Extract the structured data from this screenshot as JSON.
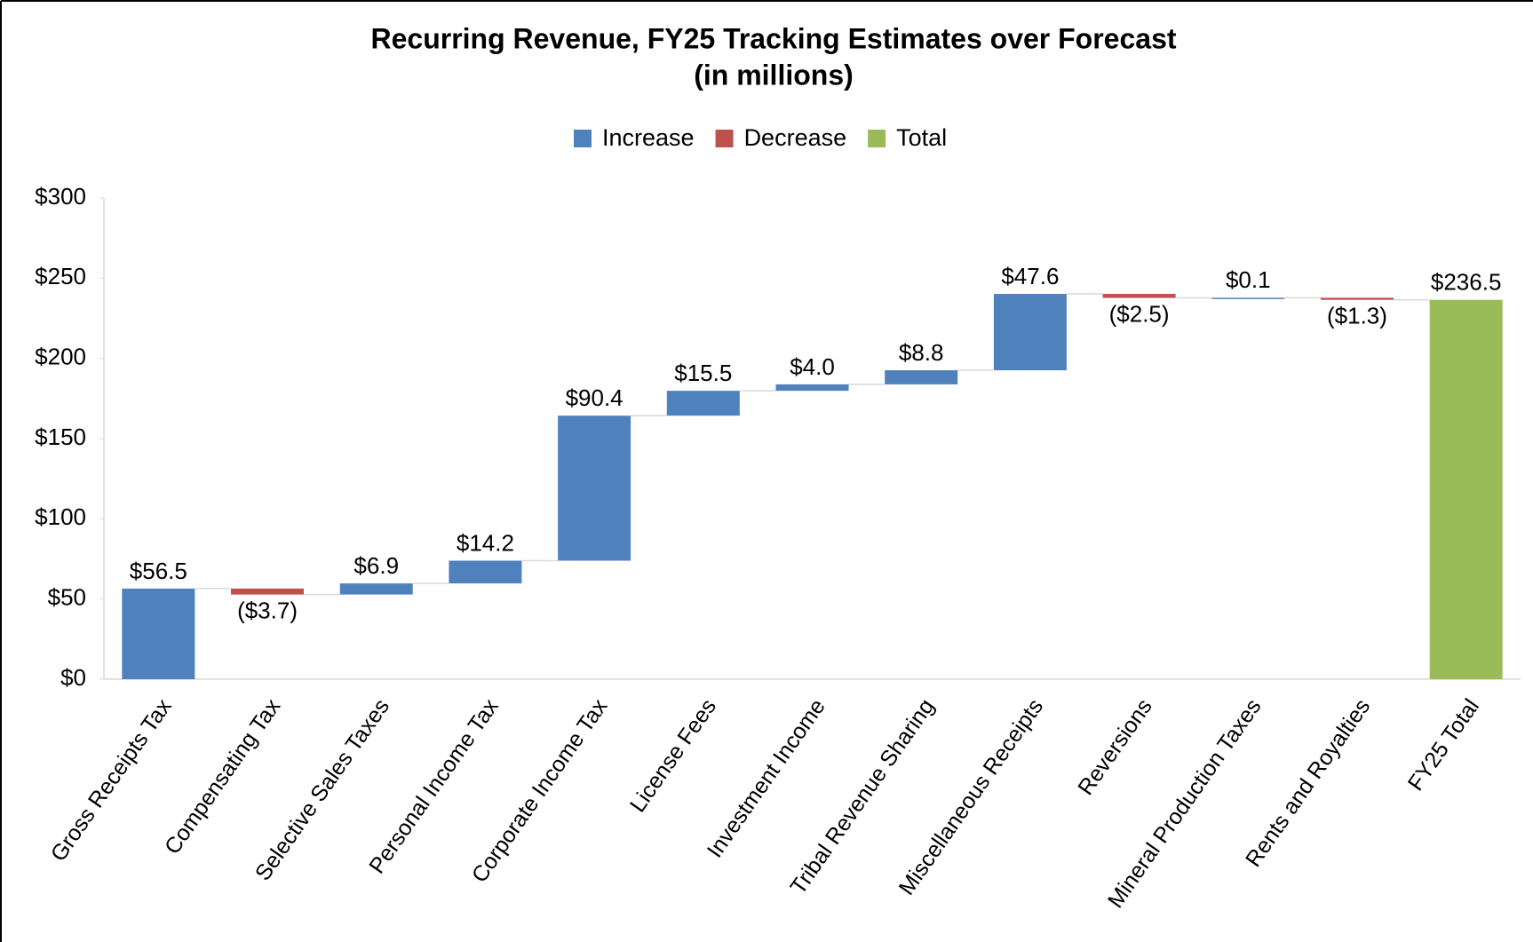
{
  "chart_data": {
    "type": "waterfall",
    "title": "Recurring Revenue, FY25 Tracking Estimates over Forecast",
    "subtitle": "(in millions)",
    "categories": [
      "Gross Receipts Tax",
      "Compensating Tax",
      "Selective Sales Taxes",
      "Personal Income Tax",
      "Corporate Income Tax",
      "License Fees",
      "Investment Income",
      "Tribal Revenue Sharing",
      "Miscellaneous Receipts",
      "Reversions",
      "Mineral Production Taxes",
      "Rents and Royalties",
      "FY25 Total"
    ],
    "values": [
      56.5,
      -3.7,
      6.9,
      14.2,
      90.4,
      15.5,
      4.0,
      8.8,
      47.6,
      -2.5,
      0.1,
      -1.3,
      236.5
    ],
    "value_labels": [
      "$56.5",
      "($3.7)",
      "$6.9",
      "$14.2",
      "$90.4",
      "$15.5",
      "$4.0",
      "$8.8",
      "$47.6",
      "($2.5)",
      "$0.1",
      "($1.3)",
      "$236.5"
    ],
    "measure": [
      "relative",
      "relative",
      "relative",
      "relative",
      "relative",
      "relative",
      "relative",
      "relative",
      "relative",
      "relative",
      "relative",
      "relative",
      "total"
    ],
    "legend": [
      {
        "name": "Increase",
        "color": "#4f81bd"
      },
      {
        "name": "Decrease",
        "color": "#c0504d"
      },
      {
        "name": "Total",
        "color": "#9bbb59"
      }
    ],
    "ylim": [
      0,
      300
    ],
    "yticks": [
      {
        "value": 0,
        "label": "$0"
      },
      {
        "value": 50,
        "label": "$50"
      },
      {
        "value": 100,
        "label": "$100"
      },
      {
        "value": 150,
        "label": "$150"
      },
      {
        "value": 200,
        "label": "$200"
      },
      {
        "value": 250,
        "label": "$250"
      },
      {
        "value": 300,
        "label": "$300"
      }
    ],
    "legend_position": "top"
  }
}
